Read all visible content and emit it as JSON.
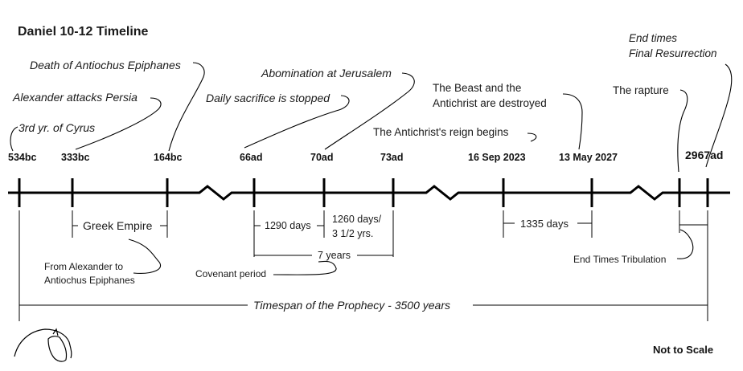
{
  "title": "Daniel 10-12 Timeline",
  "note": "Not to Scale",
  "timeline": {
    "markers": [
      "534bc",
      "333bc",
      "164bc",
      "66ad",
      "70ad",
      "73ad",
      "16 Sep 2023",
      "13 May 2027",
      "2967ad"
    ]
  },
  "events_above": {
    "cyrus": "3rd yr. of Cyrus",
    "alexander": "Alexander attacks Persia",
    "antiochus": "Death of Antiochus Epiphanes",
    "sacrifice": "Daily sacrifice is stopped",
    "abomination": "Abomination at Jerusalem",
    "antichrist_reign": "The Antichrist's reign begins",
    "beast_1": "The Beast  and the",
    "beast_2": "Antichrist are destroyed",
    "rapture": "The rapture",
    "end_1": "End times",
    "end_2": "Final Resurrection"
  },
  "spans_below": {
    "greek": "Greek Empire",
    "from_alex_1": "From Alexander to",
    "from_alex_2": "Antiochus Epiphanes",
    "days1290": "1290 days",
    "days1260_1": "1260 days/",
    "days1260_2": "3 1/2 yrs.",
    "seven_years": "7 years",
    "covenant": "Covenant period",
    "days1335": "1335 days",
    "tribulation": "End Times Tribulation",
    "timespan": "Timespan of the Prophecy - 3500 years"
  }
}
